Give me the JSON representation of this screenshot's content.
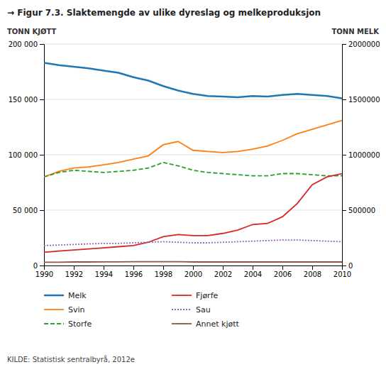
{
  "chart_data": {
    "type": "line",
    "title": "→ Figur 7.3. Slaktemengde av ulike dyreslag og melkeproduksjon",
    "ylabel": "TONN KJØTT",
    "y2label": "TONN MELK",
    "source": "KILDE: Statistisk sentralbyrå, 2012e",
    "x": [
      1990,
      1991,
      1992,
      1993,
      1994,
      1995,
      1996,
      1997,
      1998,
      1999,
      2000,
      2001,
      2002,
      2003,
      2004,
      2005,
      2006,
      2007,
      2008,
      2009,
      2010
    ],
    "xlim": [
      1990,
      2010
    ],
    "xticks": [
      1990,
      1992,
      1994,
      1996,
      1998,
      2000,
      2002,
      2004,
      2006,
      2008,
      2010
    ],
    "ylim": [
      0,
      200000
    ],
    "yticks": [
      0,
      {
        "value": 50000,
        "label": "50 000"
      },
      {
        "value": 100000,
        "label": "100 000"
      },
      {
        "value": 150000,
        "label": "150 000"
      },
      {
        "value": 200000,
        "label": "200 000"
      }
    ],
    "y2lim": [
      0,
      2000000
    ],
    "y2ticks": [
      0,
      500000,
      1000000,
      1500000,
      2000000
    ],
    "grid": true,
    "legend": "bottom",
    "series": [
      {
        "name": "Melk",
        "axis": "y2",
        "line_style": "solid",
        "values": [
          1830000,
          1810000,
          1795000,
          1780000,
          1760000,
          1740000,
          1700000,
          1670000,
          1620000,
          1580000,
          1550000,
          1530000,
          1525000,
          1520000,
          1530000,
          1525000,
          1540000,
          1550000,
          1540000,
          1530000,
          1510000
        ]
      },
      {
        "name": "Svin",
        "line_style": "solid",
        "values": [
          80000,
          85000,
          88000,
          89000,
          91000,
          93000,
          96000,
          99000,
          109000,
          112000,
          104000,
          103000,
          102000,
          103000,
          105000,
          108000,
          113000,
          119000,
          123000,
          127000,
          131000
        ]
      },
      {
        "name": "Storfe",
        "line_style": "dashed",
        "values": [
          80000,
          84000,
          86000,
          85000,
          84000,
          85000,
          86000,
          88000,
          93000,
          90000,
          86000,
          84000,
          83000,
          82000,
          81000,
          81000,
          83000,
          83000,
          82000,
          81000,
          81000
        ]
      },
      {
        "name": "Fjørfe",
        "line_style": "solid",
        "values": [
          12000,
          13000,
          14000,
          15000,
          16000,
          17000,
          18000,
          21000,
          26000,
          28000,
          27000,
          27000,
          29000,
          32000,
          37000,
          38000,
          44000,
          56000,
          73000,
          80000,
          83000
        ]
      },
      {
        "name": "Sau",
        "line_style": "dotted",
        "values": [
          18000,
          18500,
          19000,
          19500,
          20000,
          20000,
          20500,
          21000,
          21500,
          21000,
          20500,
          20500,
          21000,
          21500,
          22000,
          22500,
          23000,
          23000,
          22500,
          22000,
          21500
        ]
      },
      {
        "name": "Annet kjøtt",
        "line_style": "solid",
        "values": [
          3000,
          3000,
          3200,
          3200,
          3300,
          3300,
          3500,
          3500,
          3500,
          3500,
          3200,
          3200,
          3200,
          3200,
          3200,
          3200,
          3200,
          3200,
          3200,
          3200,
          3200
        ]
      }
    ]
  }
}
